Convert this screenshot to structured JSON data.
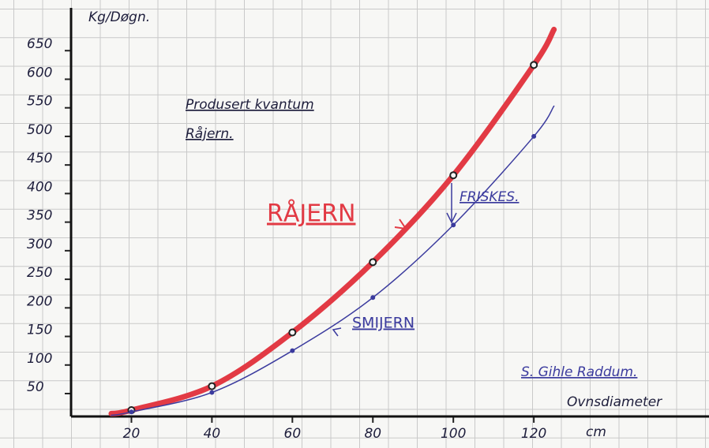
{
  "chart_data": {
    "type": "line",
    "title": "Produsert kvantum",
    "subtitle": "Råjern.",
    "y_label": "Kg/Døgn.",
    "x_label": "Ovnsdiameter",
    "x_unit": "cm",
    "signature": "S. Gihle Raddum.",
    "annotation": "FRISKES.",
    "x": [
      15,
      20,
      40,
      60,
      80,
      100,
      120,
      125
    ],
    "series": [
      {
        "name": "RÅJERN",
        "color": "#e23a44",
        "values": [
          15,
          21,
          63,
          157,
          280,
          432,
          625,
          687
        ]
      },
      {
        "name": "SMIJERN",
        "color": "#3b3b9e",
        "values": [
          12,
          18,
          52,
          125,
          218,
          345,
          500,
          553
        ]
      }
    ],
    "xlim": [
      5,
      160
    ],
    "ylim": [
      10,
      700
    ],
    "xticks": [
      20,
      40,
      60,
      80,
      100,
      120
    ],
    "yticks": [
      50,
      100,
      150,
      200,
      250,
      300,
      350,
      400,
      450,
      500,
      550,
      600,
      650
    ],
    "grid": true
  }
}
